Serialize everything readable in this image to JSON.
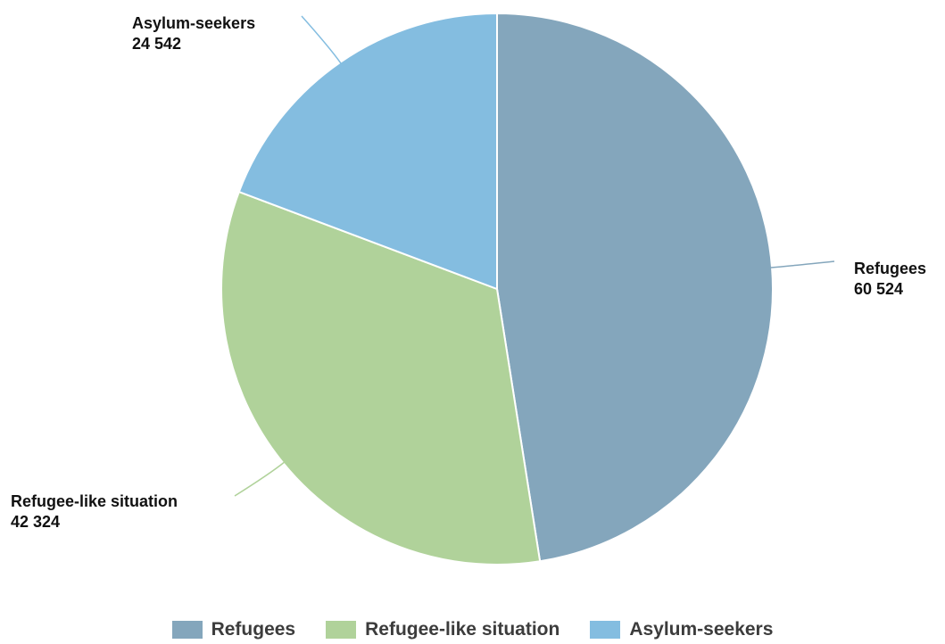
{
  "chart_data": {
    "type": "pie",
    "title": "",
    "slices": [
      {
        "name": "Refugees",
        "value": 60524,
        "value_label": "60 524",
        "color": "#84a6bc"
      },
      {
        "name": "Refugee-like situation",
        "value": 42324,
        "value_label": "42 324",
        "color": "#b0d29a"
      },
      {
        "name": "Asylum-seekers",
        "value": 24542,
        "value_label": "24 542",
        "color": "#84bde0"
      }
    ],
    "start": "top",
    "direction": "clockwise",
    "legend": "bottom",
    "legend_entries": [
      "Refugees",
      "Refugee-like situation",
      "Asylum-seekers"
    ]
  }
}
